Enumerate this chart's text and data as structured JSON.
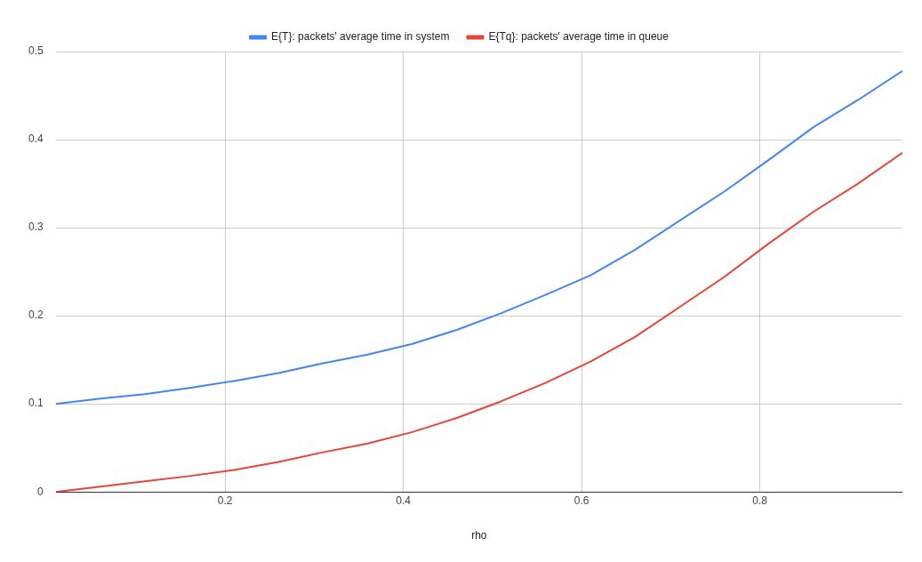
{
  "chart_data": {
    "type": "line",
    "xlabel": "rho",
    "x": [
      0.01,
      0.06,
      0.11,
      0.16,
      0.21,
      0.26,
      0.31,
      0.36,
      0.41,
      0.46,
      0.51,
      0.56,
      0.61,
      0.66,
      0.71,
      0.76,
      0.81,
      0.86,
      0.91,
      0.96
    ],
    "series": [
      {
        "name": "E{T}: packets' average time in system",
        "color": "#4285f4",
        "values": [
          0.1,
          0.106,
          0.111,
          0.118,
          0.126,
          0.135,
          0.146,
          0.156,
          0.168,
          0.184,
          0.203,
          0.224,
          0.246,
          0.275,
          0.308,
          0.341,
          0.377,
          0.414,
          0.445,
          0.478
        ]
      },
      {
        "name": "E{Tq}: packets' average time in queue",
        "color": "#ea4335",
        "values": [
          0,
          0.006,
          0.012,
          0.018,
          0.025,
          0.034,
          0.045,
          0.055,
          0.068,
          0.084,
          0.103,
          0.124,
          0.148,
          0.176,
          0.21,
          0.244,
          0.282,
          0.318,
          0.35,
          0.385
        ]
      }
    ],
    "xlim": [
      0.01,
      0.96
    ],
    "xticks": [
      0.2,
      0.4,
      0.6,
      0.8
    ],
    "ylim": [
      0,
      0.5
    ],
    "yticks": [
      0,
      0.1,
      0.2,
      0.3,
      0.4,
      0.5
    ],
    "grid": true,
    "legend": "top",
    "marker": "none",
    "line_style": "solid"
  }
}
